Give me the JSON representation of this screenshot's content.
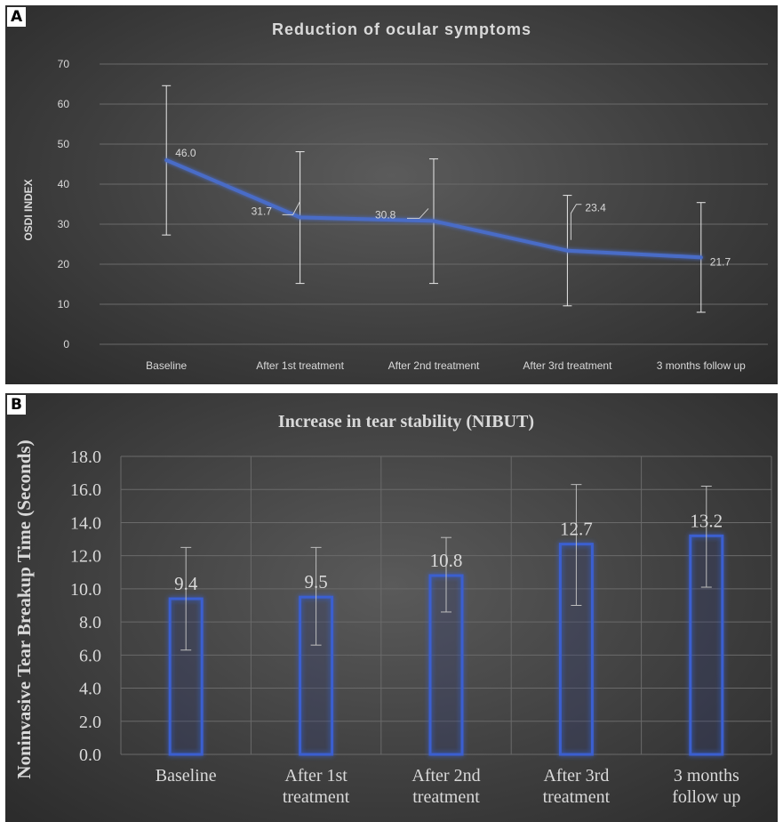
{
  "panels": {
    "a": {
      "letter": "A"
    },
    "b": {
      "letter": "B"
    }
  },
  "colors": {
    "line": "#4a6cc7",
    "bar": "#3a5fd0",
    "text": "#d9d9d9",
    "grid": "#6a6a6a"
  },
  "chart_data": [
    {
      "type": "line",
      "title": "Reduction of ocular symptoms",
      "xlabel": "",
      "ylabel": "OSDI INDEX",
      "ylim": [
        0,
        70
      ],
      "yticks": [
        "0",
        "10",
        "20",
        "30",
        "40",
        "50",
        "60",
        "70"
      ],
      "categories": [
        "Baseline",
        "After 1st treatment",
        "After 2nd treatment",
        "After 3rd treatment",
        "3 months follow up"
      ],
      "values": [
        46.0,
        31.7,
        30.8,
        23.4,
        21.7
      ],
      "data_labels": [
        "46.0",
        "31.7",
        "30.8",
        "23.4",
        "21.7"
      ],
      "error_low": [
        27.3,
        15.2,
        15.2,
        9.6,
        8.0
      ],
      "error_high": [
        64.6,
        48.1,
        46.3,
        37.2,
        35.4
      ],
      "grid": true,
      "legend": "none"
    },
    {
      "type": "bar",
      "title": "Increase in tear stability (NIBUT)",
      "xlabel": "",
      "ylabel": "Noninvasive Tear Breakup Time (Seconds)",
      "ylim": [
        0,
        18
      ],
      "yticks": [
        "0.0",
        "2.0",
        "4.0",
        "6.0",
        "8.0",
        "10.0",
        "12.0",
        "14.0",
        "16.0",
        "18.0"
      ],
      "categories": [
        [
          "Baseline"
        ],
        [
          "After 1st",
          "treatment"
        ],
        [
          "After 2nd",
          "treatment"
        ],
        [
          "After 3rd",
          "treatment"
        ],
        [
          "3 months",
          "follow up"
        ]
      ],
      "values": [
        9.4,
        9.5,
        10.8,
        12.7,
        13.2
      ],
      "data_labels": [
        "9.4",
        "9.5",
        "10.8",
        "12.7",
        "13.2"
      ],
      "error_low": [
        6.3,
        6.6,
        8.6,
        9.0,
        10.1
      ],
      "error_high": [
        12.5,
        12.5,
        13.1,
        16.3,
        16.2
      ],
      "grid": true,
      "legend": "none"
    }
  ]
}
